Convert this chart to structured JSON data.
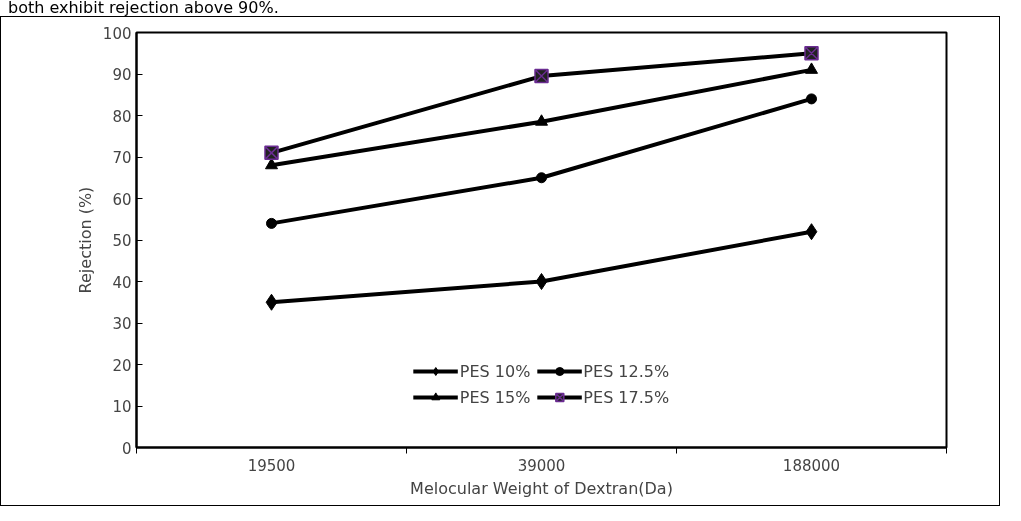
{
  "chart_data": {
    "type": "line",
    "annotations": [
      "both exhibit rejection above 90%."
    ],
    "xlabel": "Melocular Weight of Dextran(Da)",
    "ylabel": "Rejection (%)",
    "categories": [
      "19500",
      "39000",
      "188000"
    ],
    "ylim": [
      0,
      100
    ],
    "yticks": [
      0,
      10,
      20,
      30,
      40,
      50,
      60,
      70,
      80,
      90,
      100
    ],
    "grid": false,
    "legend": "bottom",
    "line_style": "solid",
    "series": [
      {
        "name": "PES 10%",
        "color": "#000000",
        "marker": "diamond",
        "values": [
          35,
          40,
          52
        ]
      },
      {
        "name": "PES 12.5%",
        "color": "#000000",
        "marker": "circle",
        "values": [
          54,
          65,
          84
        ]
      },
      {
        "name": "PES 15%",
        "color": "#000000",
        "marker": "triangle",
        "values": [
          68,
          78.5,
          91
        ]
      },
      {
        "name": "PES 17.5%",
        "color": "#000000",
        "marker": "cross",
        "values": [
          71,
          89.5,
          95
        ]
      }
    ]
  }
}
